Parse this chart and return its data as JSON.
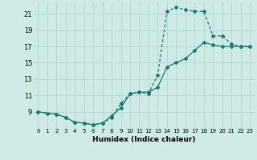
{
  "xlabel": "Humidex (Indice chaleur)",
  "background_color": "#ceeae7",
  "grid_color": "#b8d8d5",
  "line_color": "#1a7a6e",
  "xlim": [
    -0.5,
    23.5
  ],
  "ylim": [
    7,
    22.5
  ],
  "xticks": [
    0,
    1,
    2,
    3,
    4,
    5,
    6,
    7,
    8,
    9,
    10,
    11,
    12,
    13,
    14,
    15,
    16,
    17,
    18,
    19,
    20,
    21,
    22,
    23
  ],
  "yticks": [
    9,
    11,
    13,
    15,
    17,
    19,
    21
  ],
  "line1_x": [
    0,
    1,
    2,
    3,
    4,
    5,
    6,
    7,
    8,
    9,
    10,
    11,
    12,
    13,
    14,
    15,
    16,
    17,
    18,
    19,
    20,
    21,
    22,
    23
  ],
  "line1_y": [
    9,
    8.8,
    8.7,
    8.3,
    7.7,
    7.6,
    7.4,
    7.6,
    8.5,
    9.5,
    11.2,
    11.4,
    11.4,
    12.0,
    14.5,
    15.0,
    15.5,
    16.5,
    17.5,
    17.2,
    17.0,
    17.0,
    17.0,
    17.0
  ],
  "line2_x": [
    0,
    2,
    3,
    4,
    5,
    6,
    7,
    8,
    9,
    10,
    11,
    12,
    13,
    14,
    15,
    16,
    17,
    18,
    19,
    20,
    21,
    22,
    23
  ],
  "line2_y": [
    9,
    8.7,
    8.3,
    7.7,
    7.6,
    7.4,
    7.6,
    8.3,
    10.0,
    11.2,
    11.4,
    11.2,
    13.5,
    21.3,
    21.8,
    21.5,
    21.3,
    21.3,
    18.3,
    18.3,
    17.3,
    17.0,
    17.0
  ]
}
